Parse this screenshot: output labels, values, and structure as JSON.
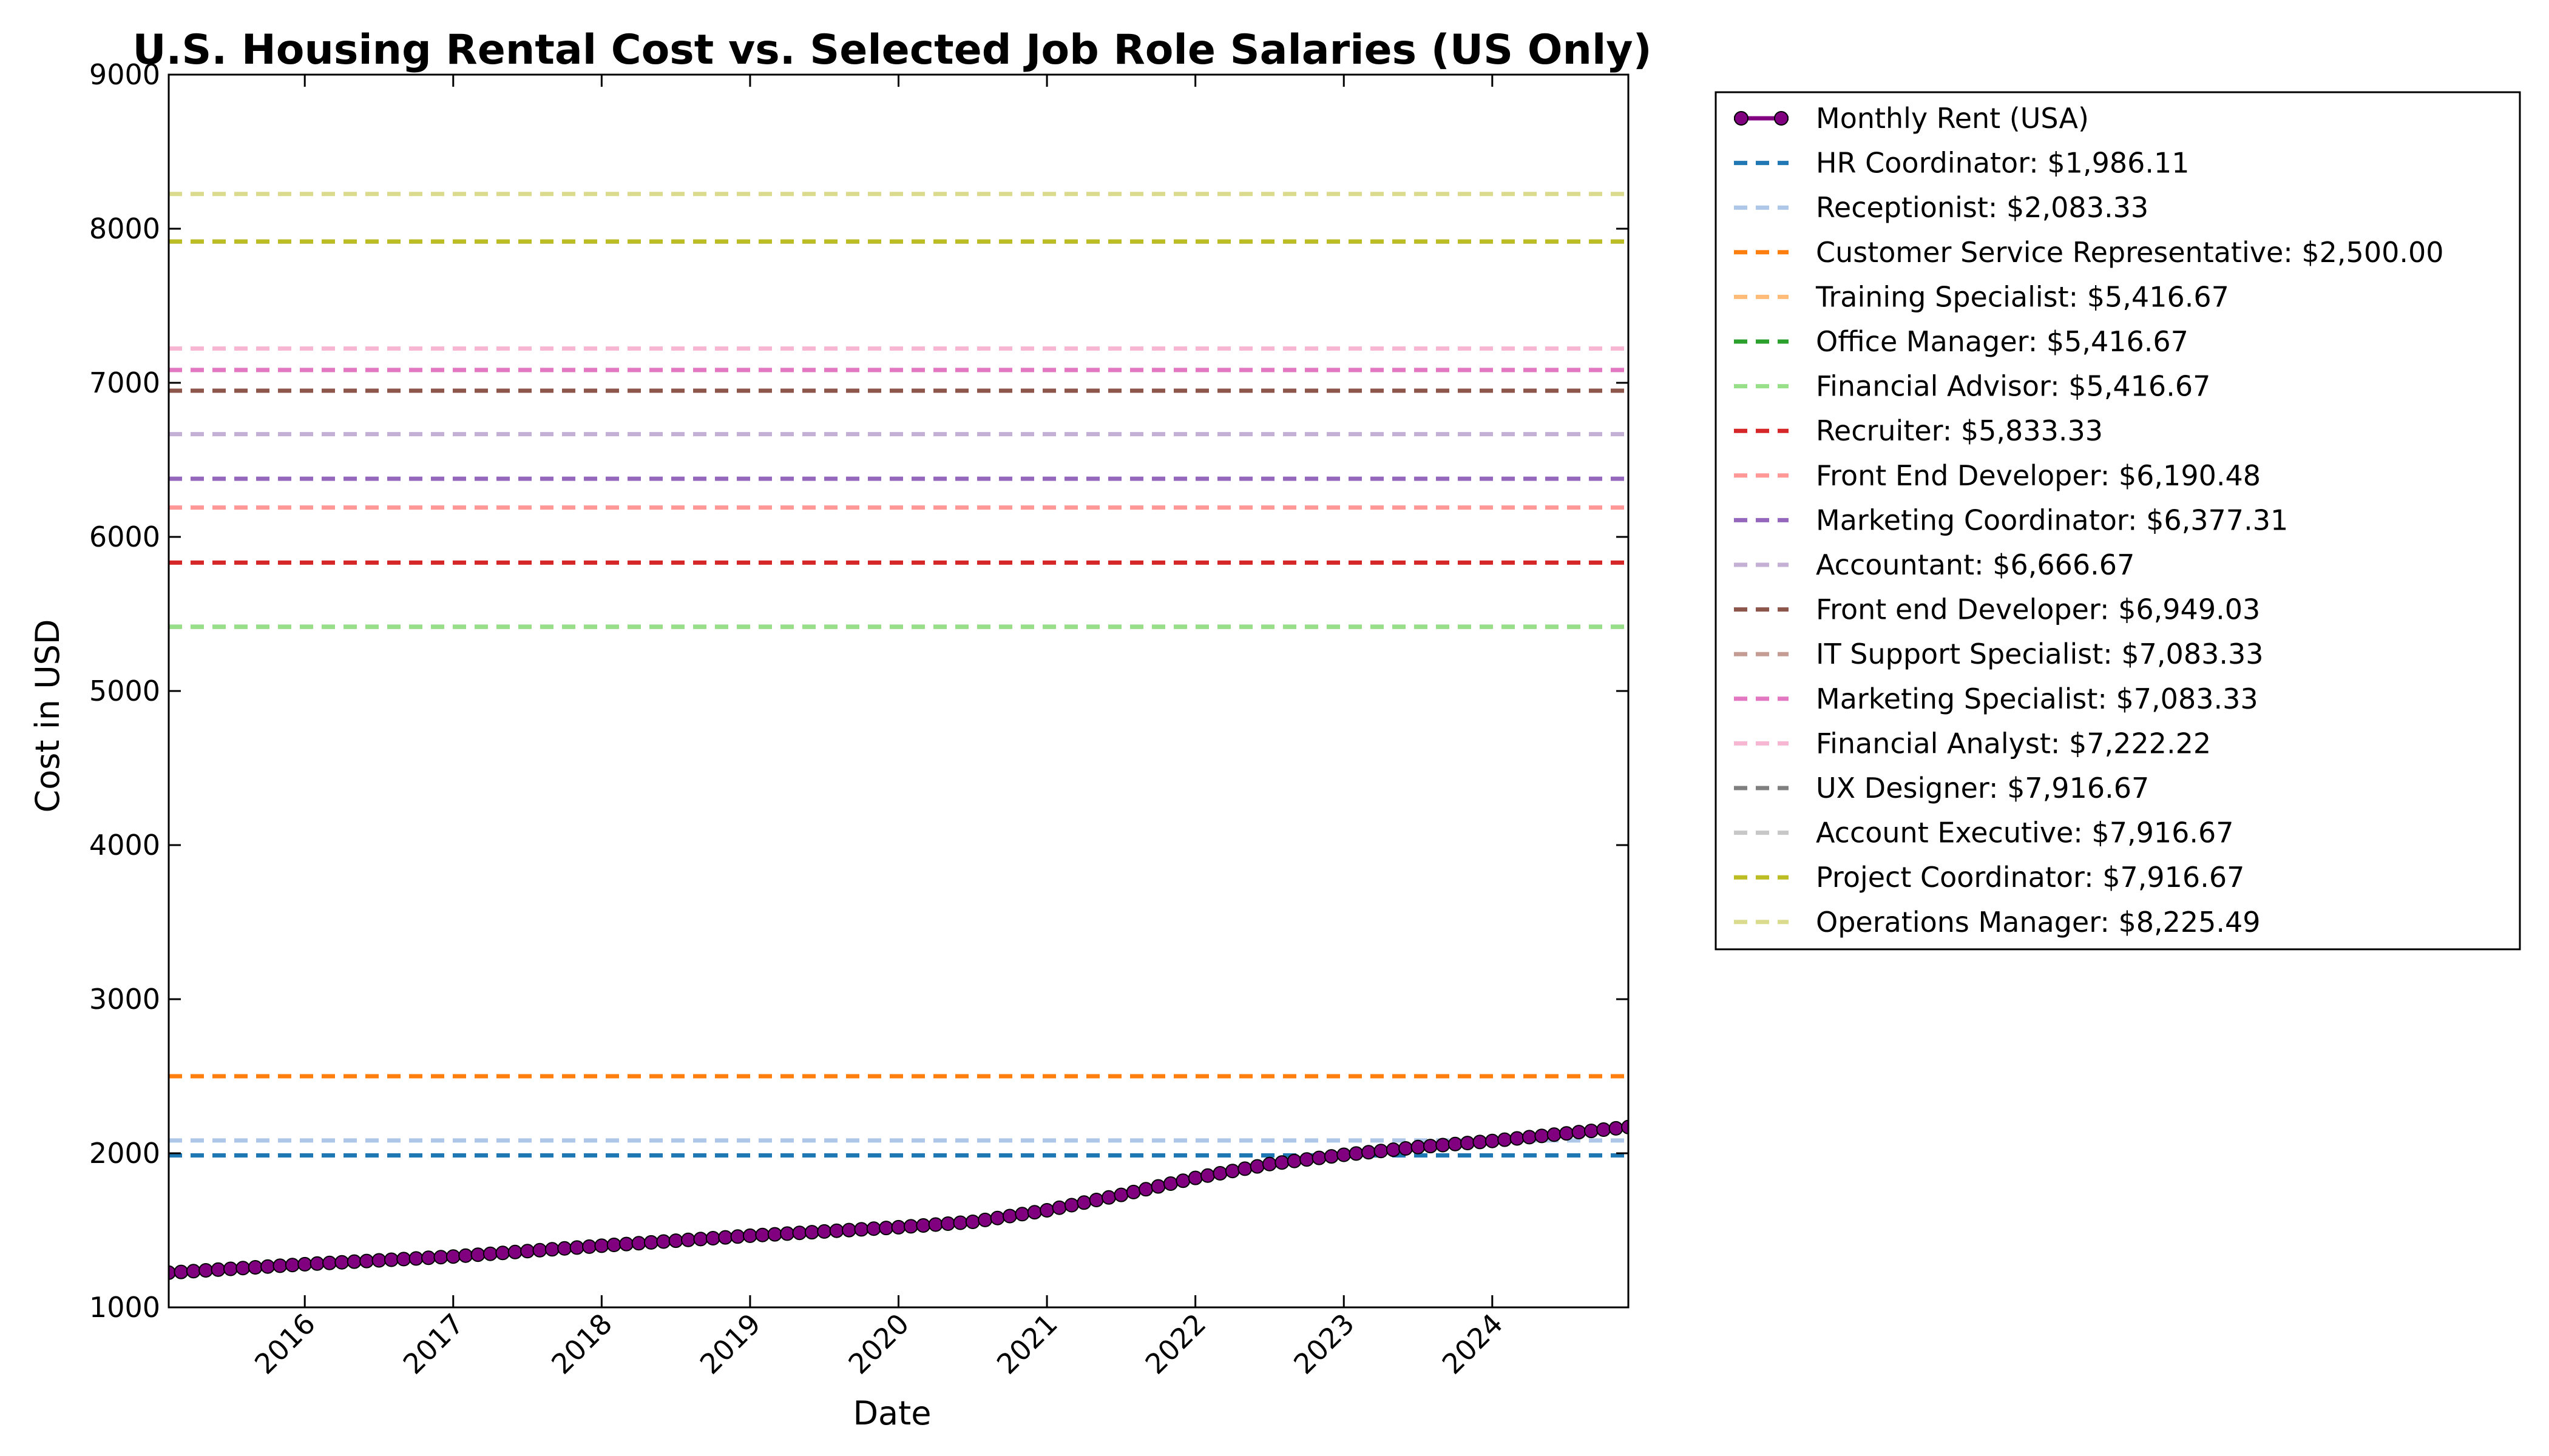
{
  "chart_data": {
    "type": "line",
    "title": "U.S. Housing Rental Cost vs. Selected Job Role Salaries (US Only)",
    "xlabel": "Date",
    "ylabel": "Cost in USD",
    "xlim": [
      "2015-02",
      "2024-12"
    ],
    "ylim": [
      1000,
      9000
    ],
    "yticks": [
      "1000",
      "2000",
      "3000",
      "4000",
      "5000",
      "6000",
      "7000",
      "8000",
      "9000"
    ],
    "xticks": [
      "2016",
      "2017",
      "2018",
      "2019",
      "2020",
      "2021",
      "2022",
      "2023",
      "2024"
    ],
    "grid": false,
    "legend_position": "outside-right",
    "rent_series": {
      "name": "Monthly Rent (USA)",
      "color": "#800080",
      "anchors": [
        [
          "2015-02",
          1225
        ],
        [
          "2016-01",
          1280
        ],
        [
          "2017-01",
          1330
        ],
        [
          "2018-01",
          1400
        ],
        [
          "2019-01",
          1465
        ],
        [
          "2020-01",
          1520
        ],
        [
          "2020-07",
          1555
        ],
        [
          "2021-01",
          1630
        ],
        [
          "2021-07",
          1730
        ],
        [
          "2022-01",
          1840
        ],
        [
          "2022-07",
          1930
        ],
        [
          "2023-01",
          1990
        ],
        [
          "2023-07",
          2040
        ],
        [
          "2024-01",
          2080
        ],
        [
          "2024-12",
          2170
        ]
      ]
    },
    "salary_lines": [
      {
        "label": "HR Coordinator: $1,986.11",
        "value": 1986.11,
        "color": "#1f77b4"
      },
      {
        "label": "Receptionist: $2,083.33",
        "value": 2083.33,
        "color": "#aec7e8"
      },
      {
        "label": "Customer Service Representative: $2,500.00",
        "value": 2500.0,
        "color": "#ff7f0e"
      },
      {
        "label": "Training Specialist: $5,416.67",
        "value": 5416.67,
        "color": "#ffbb78"
      },
      {
        "label": "Office Manager: $5,416.67",
        "value": 5416.67,
        "color": "#2ca02c"
      },
      {
        "label": "Financial Advisor: $5,416.67",
        "value": 5416.67,
        "color": "#98df8a"
      },
      {
        "label": "Recruiter: $5,833.33",
        "value": 5833.33,
        "color": "#d62728"
      },
      {
        "label": "Front End Developer: $6,190.48",
        "value": 6190.48,
        "color": "#ff9896"
      },
      {
        "label": "Marketing Coordinator: $6,377.31",
        "value": 6377.31,
        "color": "#9467bd"
      },
      {
        "label": "Accountant: $6,666.67",
        "value": 6666.67,
        "color": "#c5b0d5"
      },
      {
        "label": "Front end Developer: $6,949.03",
        "value": 6949.03,
        "color": "#8c564b"
      },
      {
        "label": "IT Support Specialist: $7,083.33",
        "value": 7083.33,
        "color": "#c49c94"
      },
      {
        "label": "Marketing Specialist: $7,083.33",
        "value": 7083.33,
        "color": "#e377c2"
      },
      {
        "label": "Financial Analyst: $7,222.22",
        "value": 7222.22,
        "color": "#f7b6d2"
      },
      {
        "label": "UX Designer: $7,916.67",
        "value": 7916.67,
        "color": "#7f7f7f"
      },
      {
        "label": "Account Executive: $7,916.67",
        "value": 7916.67,
        "color": "#c7c7c7"
      },
      {
        "label": "Project Coordinator: $7,916.67",
        "value": 7916.67,
        "color": "#bcbd22"
      },
      {
        "label": "Operations Manager: $8,225.49",
        "value": 8225.49,
        "color": "#dbdb8d"
      }
    ]
  }
}
